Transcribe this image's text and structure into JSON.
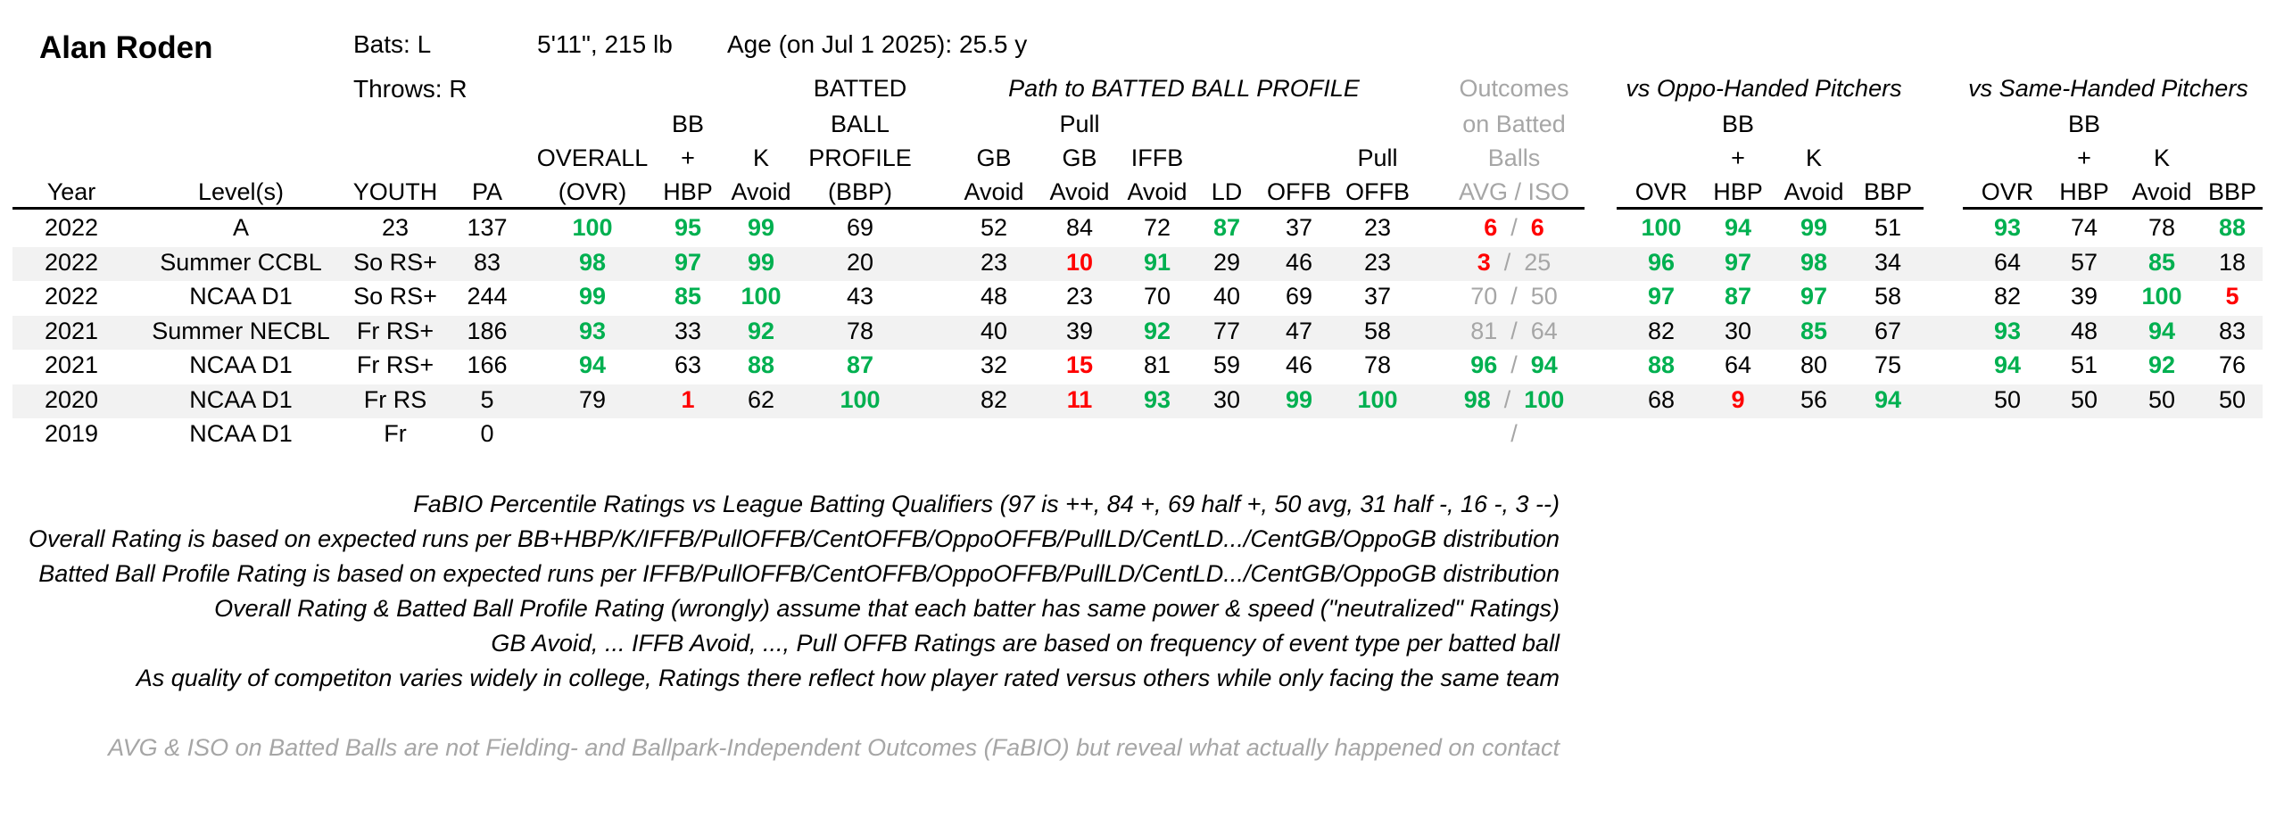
{
  "player": {
    "name": "Alan Roden",
    "bats": "Bats: L",
    "throws": "Throws: R",
    "size": "5'11\", 215 lb",
    "age": "Age (on Jul 1 2025): 25.5 y"
  },
  "groups": {
    "path": "Path to BATTED BALL PROFILE",
    "oppo": "vs Oppo-Handed Pitchers",
    "same": "vs Same-Handed Pitchers"
  },
  "headers": {
    "year": "Year",
    "level": "Level(s)",
    "youth": "YOUTH",
    "pa": "PA",
    "ovr_1": "OVERALL",
    "ovr_2": "(OVR)",
    "bb_1": "BB",
    "bb_2": "+",
    "bb_3": "HBP",
    "k_1": "K",
    "k_2": "Avoid",
    "bbp_1": "BATTED",
    "bbp_2": "BALL",
    "bbp_3": "PROFILE",
    "bbp_4": "(BBP)",
    "gb_1": "GB",
    "gb_2": "Avoid",
    "pgb_1": "Pull",
    "pgb_2": "GB",
    "pgb_3": "Avoid",
    "iffb_1": "IFFB",
    "iffb_2": "Avoid",
    "ld": "LD",
    "offb": "OFFB",
    "poffb_1": "Pull",
    "poffb_2": "OFFB",
    "out_1": "Outcomes",
    "out_2": "on Batted",
    "out_3": "Balls",
    "out_4": "AVG  /  ISO",
    "ovr": "OVR",
    "bbp": "BBP"
  },
  "rows": [
    {
      "year": "2022",
      "level": "A",
      "youth": "23",
      "pa": "137",
      "ovr": "100",
      "bbhbp": "95",
      "kav": "99",
      "bbp": "69",
      "gbav": "52",
      "pgbav": "84",
      "iffbav": "72",
      "ld": "87",
      "offb": "37",
      "poffb": "23",
      "avg": "6",
      "iso": "6",
      "o_ovr": "100",
      "o_bb": "94",
      "o_k": "99",
      "o_bbp": "51",
      "s_ovr": "93",
      "s_bb": "74",
      "s_k": "78",
      "s_bbp": "88"
    },
    {
      "year": "2022",
      "level": "Summer CCBL",
      "youth": "So RS+",
      "pa": "83",
      "ovr": "98",
      "bbhbp": "97",
      "kav": "99",
      "bbp": "20",
      "gbav": "23",
      "pgbav": "10",
      "iffbav": "91",
      "ld": "29",
      "offb": "46",
      "poffb": "23",
      "avg": "3",
      "iso": "25",
      "o_ovr": "96",
      "o_bb": "97",
      "o_k": "98",
      "o_bbp": "34",
      "s_ovr": "64",
      "s_bb": "57",
      "s_k": "85",
      "s_bbp": "18"
    },
    {
      "year": "2022",
      "level": "NCAA D1",
      "youth": "So RS+",
      "pa": "244",
      "ovr": "99",
      "bbhbp": "85",
      "kav": "100",
      "bbp": "43",
      "gbav": "48",
      "pgbav": "23",
      "iffbav": "70",
      "ld": "40",
      "offb": "69",
      "poffb": "37",
      "avg": "70",
      "iso": "50",
      "o_ovr": "97",
      "o_bb": "87",
      "o_k": "97",
      "o_bbp": "58",
      "s_ovr": "82",
      "s_bb": "39",
      "s_k": "100",
      "s_bbp": "5"
    },
    {
      "year": "2021",
      "level": "Summer NECBL",
      "youth": "Fr RS+",
      "pa": "186",
      "ovr": "93",
      "bbhbp": "33",
      "kav": "92",
      "bbp": "78",
      "gbav": "40",
      "pgbav": "39",
      "iffbav": "92",
      "ld": "77",
      "offb": "47",
      "poffb": "58",
      "avg": "81",
      "iso": "64",
      "o_ovr": "82",
      "o_bb": "30",
      "o_k": "85",
      "o_bbp": "67",
      "s_ovr": "93",
      "s_bb": "48",
      "s_k": "94",
      "s_bbp": "83"
    },
    {
      "year": "2021",
      "level": "NCAA D1",
      "youth": "Fr RS+",
      "pa": "166",
      "ovr": "94",
      "bbhbp": "63",
      "kav": "88",
      "bbp": "87",
      "gbav": "32",
      "pgbav": "15",
      "iffbav": "81",
      "ld": "59",
      "offb": "46",
      "poffb": "78",
      "avg": "96",
      "iso": "94",
      "o_ovr": "88",
      "o_bb": "64",
      "o_k": "80",
      "o_bbp": "75",
      "s_ovr": "94",
      "s_bb": "51",
      "s_k": "92",
      "s_bbp": "76"
    },
    {
      "year": "2020",
      "level": "NCAA D1",
      "youth": "Fr RS",
      "pa": "5",
      "ovr": "79",
      "bbhbp": "1",
      "kav": "62",
      "bbp": "100",
      "gbav": "82",
      "pgbav": "11",
      "iffbav": "93",
      "ld": "30",
      "offb": "99",
      "poffb": "100",
      "avg": "98",
      "iso": "100",
      "o_ovr": "68",
      "o_bb": "9",
      "o_k": "56",
      "o_bbp": "94",
      "s_ovr": "50",
      "s_bb": "50",
      "s_k": "50",
      "s_bbp": "50"
    },
    {
      "year": "2019",
      "level": "NCAA D1",
      "youth": "Fr",
      "pa": "0",
      "ovr": "",
      "bbhbp": "",
      "kav": "",
      "bbp": "",
      "gbav": "",
      "pgbav": "",
      "iffbav": "",
      "ld": "",
      "offb": "",
      "poffb": "",
      "avg": "",
      "iso": "",
      "o_ovr": "",
      "o_bb": "",
      "o_k": "",
      "o_bbp": "",
      "s_ovr": "",
      "s_bb": "",
      "s_k": "",
      "s_bbp": ""
    }
  ],
  "notes": [
    "FaBIO Percentile Ratings vs League Batting Qualifiers (97 is ++, 84 +, 69 half +, 50 avg, 31 half -, 16 -, 3 --)",
    "Overall Rating is based on expected runs per BB+HBP/K/IFFB/PullOFFB/CentOFFB/OppoOFFB/PullLD/CentLD.../CentGB/OppoGB distribution",
    "Batted Ball Profile Rating is based on expected runs per IFFB/PullOFFB/CentOFFB/OppoOFFB/PullLD/CentLD.../CentGB/OppoGB distribution",
    "Overall Rating & Batted Ball Profile Rating (wrongly) assume that each batter has same power & speed (\"neutralized\" Ratings)",
    "GB Avoid, ... IFFB Avoid, ..., Pull OFFB Ratings are based on frequency of event type per batted ball",
    "As quality of competiton varies widely in college, Ratings there reflect how player rated versus others while only facing the same team"
  ],
  "footnote": "AVG & ISO on Batted Balls are not Fielding- and Ballpark-Independent Outcomes (FaBIO) but reveal what actually happened on contact",
  "colors": {
    "high": "#00b050",
    "low": "#ff0000",
    "muted": "#a6a6a6",
    "band": "#f2f2f2"
  }
}
